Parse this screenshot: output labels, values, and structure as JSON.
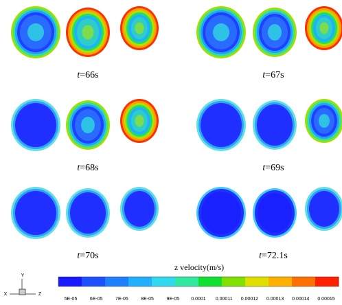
{
  "panels": [
    {
      "label": "t=66s"
    },
    {
      "label": "t=67s"
    },
    {
      "label": "t=68s"
    },
    {
      "label": "t=69s"
    },
    {
      "label": "t=70s"
    },
    {
      "label": "t=72.1s"
    }
  ],
  "colorbar": {
    "title": "z velocity(m/s)",
    "ticks": [
      "5E-05",
      "6E-05",
      "7E-05",
      "8E-05",
      "9E-05",
      "0.0001",
      "0.00011",
      "0.00012",
      "0.00013",
      "0.00014",
      "0.00015"
    ]
  },
  "axes": {
    "x": "X",
    "y": "Y",
    "z": "Z"
  }
}
